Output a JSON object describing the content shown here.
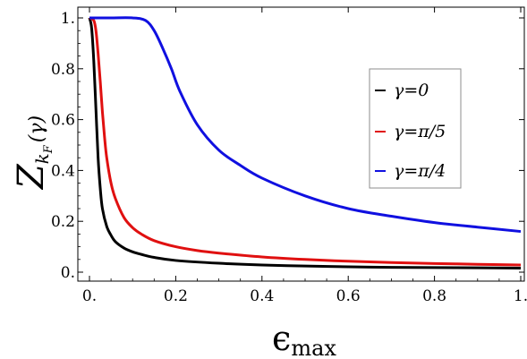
{
  "chart_data": {
    "type": "line",
    "title": "",
    "xlabel": "ϵ",
    "xlabel_sub": "max",
    "ylabel": "Z",
    "ylabel_sub": "k",
    "ylabel_subsub": "F",
    "ylabel_arg": "(γ)",
    "xlim": [
      0,
      1
    ],
    "ylim": [
      0,
      1
    ],
    "x_ticks": [
      0,
      0.2,
      0.4,
      0.6,
      0.8,
      1
    ],
    "x_tick_labels": [
      "0.",
      "0.2",
      "0.4",
      "0.6",
      "0.8",
      "1."
    ],
    "y_ticks": [
      0,
      0.2,
      0.4,
      0.6,
      0.8,
      1
    ],
    "y_tick_labels": [
      "0.",
      "0.2",
      "0.4",
      "0.6",
      "0.8",
      "1."
    ],
    "grid": false,
    "legend_position": "right",
    "series": [
      {
        "name": "γ=0",
        "color": "#000000",
        "x": [
          0,
          0.005,
          0.01,
          0.015,
          0.02,
          0.025,
          0.03,
          0.04,
          0.05,
          0.06,
          0.08,
          0.1,
          0.12,
          0.15,
          0.2,
          0.3,
          0.4,
          0.5,
          0.6,
          0.7,
          0.8,
          0.9,
          1.0
        ],
        "y": [
          1.0,
          0.96,
          0.83,
          0.64,
          0.45,
          0.33,
          0.25,
          0.18,
          0.145,
          0.12,
          0.095,
          0.08,
          0.07,
          0.058,
          0.046,
          0.035,
          0.028,
          0.024,
          0.021,
          0.019,
          0.018,
          0.017,
          0.016
        ]
      },
      {
        "name": "γ=π/5",
        "color": "#e01010",
        "x": [
          0,
          0.01,
          0.015,
          0.02,
          0.025,
          0.03,
          0.035,
          0.04,
          0.05,
          0.06,
          0.08,
          0.1,
          0.12,
          0.15,
          0.2,
          0.25,
          0.3,
          0.4,
          0.5,
          0.6,
          0.7,
          0.8,
          0.9,
          1.0
        ],
        "y": [
          1.0,
          0.99,
          0.95,
          0.86,
          0.75,
          0.63,
          0.53,
          0.45,
          0.35,
          0.29,
          0.215,
          0.175,
          0.15,
          0.124,
          0.1,
          0.085,
          0.075,
          0.06,
          0.05,
          0.043,
          0.038,
          0.034,
          0.031,
          0.028
        ]
      },
      {
        "name": "γ=π/4",
        "color": "#1010e0",
        "x": [
          0,
          0.05,
          0.1,
          0.13,
          0.15,
          0.17,
          0.19,
          0.21,
          0.25,
          0.3,
          0.35,
          0.4,
          0.5,
          0.6,
          0.7,
          0.8,
          0.9,
          1.0
        ],
        "y": [
          1.0,
          1.0,
          1.0,
          0.99,
          0.95,
          0.88,
          0.8,
          0.71,
          0.58,
          0.48,
          0.42,
          0.37,
          0.3,
          0.25,
          0.22,
          0.195,
          0.177,
          0.16
        ]
      }
    ]
  }
}
